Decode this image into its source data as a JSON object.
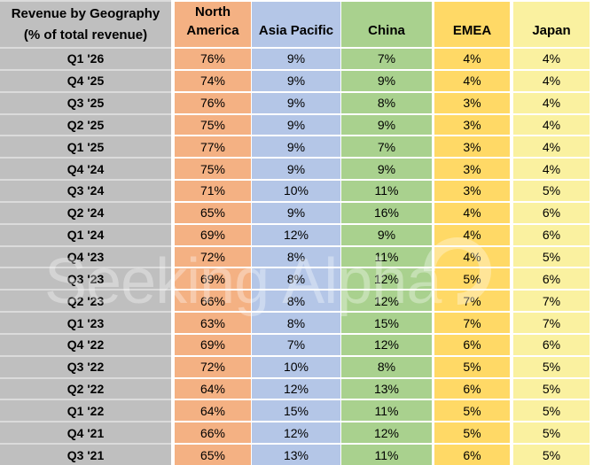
{
  "table": {
    "title_line1": "Revenue by Geography",
    "title_line2": "(% of total revenue)",
    "columns": [
      "North America",
      "Asia Pacific",
      "China",
      "EMEA",
      "Japan"
    ],
    "rows": [
      {
        "quarter": "Q1 '26",
        "values": [
          "76%",
          "9%",
          "7%",
          "4%",
          "4%"
        ]
      },
      {
        "quarter": "Q4 '25",
        "values": [
          "74%",
          "9%",
          "9%",
          "4%",
          "4%"
        ]
      },
      {
        "quarter": "Q3 '25",
        "values": [
          "76%",
          "9%",
          "8%",
          "3%",
          "4%"
        ]
      },
      {
        "quarter": "Q2 '25",
        "values": [
          "75%",
          "9%",
          "9%",
          "3%",
          "4%"
        ]
      },
      {
        "quarter": "Q1 '25",
        "values": [
          "77%",
          "9%",
          "7%",
          "3%",
          "4%"
        ]
      },
      {
        "quarter": "Q4 '24",
        "values": [
          "75%",
          "9%",
          "9%",
          "3%",
          "4%"
        ]
      },
      {
        "quarter": "Q3 '24",
        "values": [
          "71%",
          "10%",
          "11%",
          "3%",
          "5%"
        ]
      },
      {
        "quarter": "Q2 '24",
        "values": [
          "65%",
          "9%",
          "16%",
          "4%",
          "6%"
        ]
      },
      {
        "quarter": "Q1 '24",
        "values": [
          "69%",
          "12%",
          "9%",
          "4%",
          "6%"
        ]
      },
      {
        "quarter": "Q4 '23",
        "values": [
          "72%",
          "8%",
          "11%",
          "4%",
          "5%"
        ]
      },
      {
        "quarter": "Q3 '23",
        "values": [
          "69%",
          "8%",
          "12%",
          "5%",
          "6%"
        ]
      },
      {
        "quarter": "Q2 '23",
        "values": [
          "66%",
          "8%",
          "12%",
          "7%",
          "7%"
        ]
      },
      {
        "quarter": "Q1 '23",
        "values": [
          "63%",
          "8%",
          "15%",
          "7%",
          "7%"
        ]
      },
      {
        "quarter": "Q4 '22",
        "values": [
          "69%",
          "7%",
          "12%",
          "6%",
          "6%"
        ]
      },
      {
        "quarter": "Q3 '22",
        "values": [
          "72%",
          "10%",
          "8%",
          "5%",
          "5%"
        ]
      },
      {
        "quarter": "Q2 '22",
        "values": [
          "64%",
          "12%",
          "13%",
          "6%",
          "5%"
        ]
      },
      {
        "quarter": "Q1 '22",
        "values": [
          "64%",
          "15%",
          "11%",
          "5%",
          "5%"
        ]
      },
      {
        "quarter": "Q4 '21",
        "values": [
          "66%",
          "12%",
          "12%",
          "5%",
          "5%"
        ]
      },
      {
        "quarter": "Q3 '21",
        "values": [
          "65%",
          "13%",
          "11%",
          "6%",
          "5%"
        ]
      }
    ]
  },
  "watermark": "Seeking Alpha",
  "colors": {
    "label_bg": "#bfbfbf",
    "north_america": "#f4b183",
    "asia_pacific": "#b4c6e7",
    "china": "#a9d18e",
    "emea": "#ffd966",
    "japan": "#faf1a0"
  },
  "chart_data": {
    "type": "table",
    "title": "Revenue by Geography (% of total revenue)",
    "unit": "%",
    "categories": [
      "Q1 '26",
      "Q4 '25",
      "Q3 '25",
      "Q2 '25",
      "Q1 '25",
      "Q4 '24",
      "Q3 '24",
      "Q2 '24",
      "Q1 '24",
      "Q4 '23",
      "Q3 '23",
      "Q2 '23",
      "Q1 '23",
      "Q4 '22",
      "Q3 '22",
      "Q2 '22",
      "Q1 '22",
      "Q4 '21",
      "Q3 '21"
    ],
    "series": [
      {
        "name": "North America",
        "values": [
          76,
          74,
          76,
          75,
          77,
          75,
          71,
          65,
          69,
          72,
          69,
          66,
          63,
          69,
          72,
          64,
          64,
          66,
          65
        ]
      },
      {
        "name": "Asia Pacific",
        "values": [
          9,
          9,
          9,
          9,
          9,
          9,
          10,
          9,
          12,
          8,
          8,
          8,
          8,
          7,
          10,
          12,
          15,
          12,
          13
        ]
      },
      {
        "name": "China",
        "values": [
          7,
          9,
          8,
          9,
          7,
          9,
          11,
          16,
          9,
          11,
          12,
          12,
          15,
          12,
          8,
          13,
          11,
          12,
          11
        ]
      },
      {
        "name": "EMEA",
        "values": [
          4,
          4,
          3,
          3,
          3,
          3,
          3,
          4,
          4,
          4,
          5,
          7,
          7,
          6,
          5,
          6,
          5,
          5,
          6
        ]
      },
      {
        "name": "Japan",
        "values": [
          4,
          4,
          4,
          4,
          4,
          4,
          5,
          6,
          6,
          5,
          6,
          7,
          7,
          6,
          5,
          5,
          5,
          5,
          5
        ]
      }
    ]
  }
}
